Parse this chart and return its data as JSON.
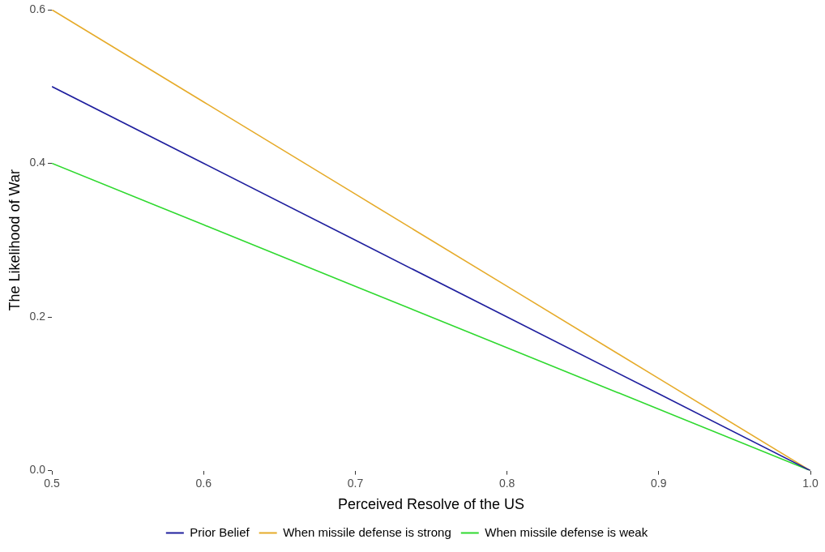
{
  "chart_data": {
    "type": "line",
    "xlabel": "Perceived Resolve of the US",
    "ylabel": "The Likelihood of War",
    "x": [
      0.5,
      0.6,
      0.7,
      0.8,
      0.9,
      1.0
    ],
    "series": [
      {
        "name": "Prior Belief",
        "color": "#1f1f9e",
        "values": [
          0.5,
          0.4,
          0.3,
          0.2,
          0.1,
          0
        ]
      },
      {
        "name": "When missile defense is strong",
        "color": "#e6ab2a",
        "values": [
          0.6,
          0.48,
          0.36,
          0.24,
          0.12,
          0
        ]
      },
      {
        "name": "When missile defense is weak",
        "color": "#2fd92f",
        "values": [
          0.4,
          0.32,
          0.24,
          0.16,
          0.08,
          0
        ]
      }
    ],
    "xlim": [
      0.5,
      1.0
    ],
    "xticks": [
      {
        "value": 0.5,
        "label": "0.5"
      },
      {
        "value": 0.6,
        "label": "0.6"
      },
      {
        "value": 0.7,
        "label": "0.7"
      },
      {
        "value": 0.8,
        "label": "0.8"
      },
      {
        "value": 0.9,
        "label": "0.9"
      },
      {
        "value": 1.0,
        "label": "1.0"
      }
    ],
    "ylim": [
      0,
      0.6
    ],
    "yticks": [
      {
        "value": 0,
        "label": "0.0"
      },
      {
        "value": 0.2,
        "label": "0.2"
      },
      {
        "value": 0.4,
        "label": "0.4"
      },
      {
        "value": 0.6,
        "label": "0.6"
      }
    ],
    "grid": false,
    "legend": "bottom",
    "marker": "none",
    "line_style": "solid"
  }
}
